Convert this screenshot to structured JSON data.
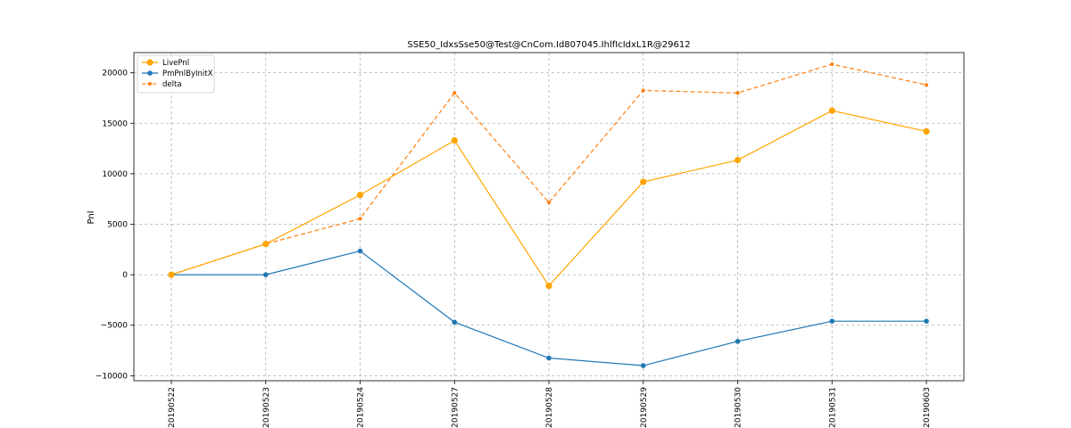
{
  "chart_data": {
    "type": "line",
    "title": "SSE50_IdxsSse50@Test@CnCom.Id807045.IhlfIcIdxL1R@29612",
    "xlabel": "",
    "ylabel": "Pnl",
    "ylim": [
      -10500,
      22000
    ],
    "yticks": [
      -10000,
      -5000,
      0,
      5000,
      10000,
      15000,
      20000
    ],
    "grid": true,
    "legend_position": "top-left",
    "categories": [
      "20190522",
      "20190523",
      "20190524",
      "20190527",
      "20190528",
      "20190529",
      "20190530",
      "20190531",
      "20190603"
    ],
    "series": [
      {
        "name": "LivePnl",
        "color": "#ffa500",
        "style": "solid",
        "marker": "circle-large",
        "values": [
          0,
          3050,
          7900,
          13300,
          -1100,
          9200,
          11350,
          16250,
          14200
        ]
      },
      {
        "name": "PmPnlByInitX",
        "color": "#1f77b4",
        "style": "solid",
        "marker": "circle",
        "values": [
          0,
          0,
          2350,
          -4700,
          -8250,
          -9000,
          -6600,
          -4600,
          -4600
        ]
      },
      {
        "name": "delta",
        "color": "#ff7f0e",
        "style": "dashed",
        "marker": "circle-small",
        "values": [
          0,
          3050,
          5550,
          18000,
          7150,
          18250,
          18000,
          20850,
          18800
        ]
      }
    ]
  }
}
